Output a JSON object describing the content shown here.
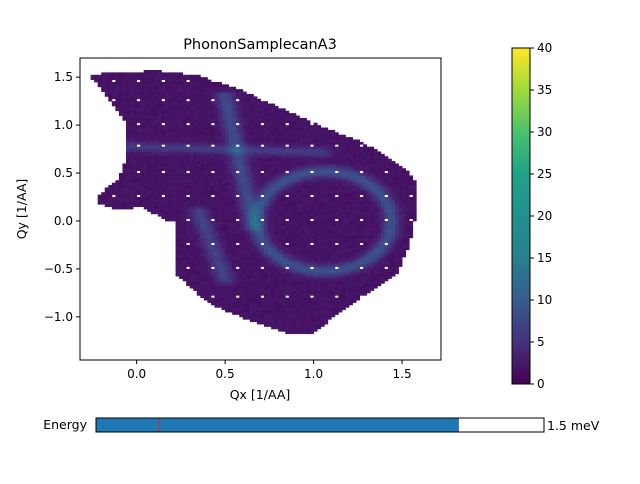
{
  "chart_data": {
    "type": "heatmap",
    "title": "PhononSamplecanA3",
    "xlabel": "Qx [1/AA]",
    "ylabel": "Qy [1/AA]",
    "xlim": [
      -0.32,
      1.72
    ],
    "ylim": [
      -1.45,
      1.7
    ],
    "x_ticks": [
      0.0,
      0.5,
      1.0,
      1.5
    ],
    "x_tick_labels": [
      "0.0",
      "0.5",
      "1.0",
      "1.5"
    ],
    "y_ticks": [
      -1.0,
      -0.5,
      0.0,
      0.5,
      1.0,
      1.5
    ],
    "y_tick_labels": [
      "−1.0",
      "−0.5",
      "0.0",
      "0.5",
      "1.0",
      "1.5"
    ],
    "colormap": "viridis",
    "colorbar": {
      "range": [
        0,
        40
      ],
      "ticks": [
        0,
        5,
        10,
        15,
        20,
        25,
        30,
        35,
        40
      ],
      "tick_labels": [
        "0",
        "5",
        "10",
        "15",
        "20",
        "25",
        "30",
        "35",
        "40"
      ]
    },
    "background_level": 2,
    "features": [
      {
        "kind": "ring",
        "center": [
          1.06,
          0.0
        ],
        "radius_x": 0.38,
        "radius_y": 0.52,
        "level": 10
      },
      {
        "kind": "band",
        "from": [
          0.5,
          1.3
        ],
        "to": [
          0.66,
          -0.05
        ],
        "level": 9
      },
      {
        "kind": "band",
        "from": [
          -0.05,
          0.78
        ],
        "to": [
          1.05,
          0.72
        ],
        "level": 7
      },
      {
        "kind": "band",
        "from": [
          0.35,
          0.1
        ],
        "to": [
          0.5,
          -0.6
        ],
        "level": 8
      }
    ]
  },
  "slider": {
    "label": "Energy",
    "value_text": "1.5 meV",
    "fraction": 0.81,
    "marker_fraction": 0.14
  },
  "colors": {
    "slider_fill": "#1f77b4",
    "slider_marker": "#d62728",
    "low": "#440154",
    "high": "#fde725"
  }
}
